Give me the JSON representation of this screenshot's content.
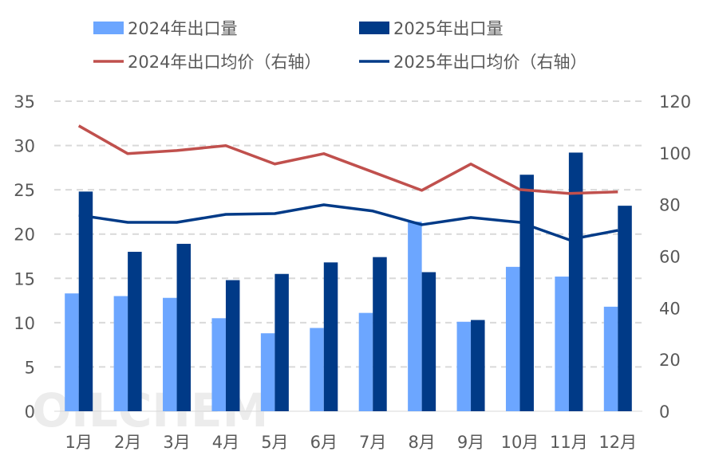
{
  "chart_data": {
    "type": "bar",
    "categories": [
      "1月",
      "2月",
      "3月",
      "4月",
      "5月",
      "6月",
      "7月",
      "8月",
      "9月",
      "10月",
      "11月",
      "12月"
    ],
    "series": [
      {
        "name": "2024年出口量",
        "kind": "bar",
        "axis": "left",
        "color": "#6CA6FF",
        "values": [
          13.3,
          13.0,
          12.8,
          10.5,
          8.8,
          9.4,
          11.1,
          21.4,
          10.1,
          16.3,
          15.2,
          11.8
        ]
      },
      {
        "name": "2025年出口量",
        "kind": "bar",
        "axis": "left",
        "color": "#003A87",
        "values": [
          24.8,
          18.0,
          18.9,
          14.8,
          15.5,
          16.8,
          17.4,
          15.7,
          10.3,
          26.7,
          29.2,
          23.2
        ]
      },
      {
        "name": "2024年出口均价（右轴）",
        "kind": "line",
        "axis": "right",
        "color": "#C0504D",
        "values": [
          110.5,
          99.7,
          100.9,
          102.8,
          95.7,
          99.7,
          92.6,
          85.5,
          95.7,
          85.8,
          84.3,
          84.9
        ]
      },
      {
        "name": "2025年出口均价（右轴）",
        "kind": "line",
        "axis": "right",
        "color": "#003A87",
        "values": [
          75.9,
          73.1,
          73.1,
          76.2,
          76.5,
          79.9,
          77.5,
          72.2,
          75.0,
          73.1,
          66.4,
          70.0
        ]
      }
    ],
    "y_left": {
      "range": [
        0,
        35
      ],
      "ticks": [
        0,
        5,
        10,
        15,
        20,
        25,
        30,
        35
      ]
    },
    "y_right": {
      "range": [
        0,
        120
      ],
      "ticks": [
        0,
        20,
        40,
        60,
        80,
        100,
        120
      ]
    },
    "grid": true,
    "legend_placement": "top",
    "watermark": "OILCHEM"
  }
}
